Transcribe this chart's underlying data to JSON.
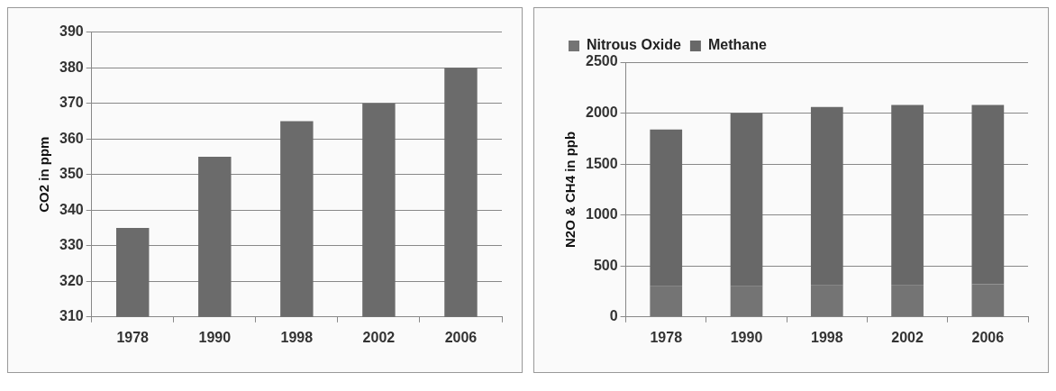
{
  "chart_data": [
    {
      "type": "bar",
      "ylabel": "CO2 in ppm",
      "categories": [
        "1978",
        "1990",
        "1998",
        "2002",
        "2006"
      ],
      "values": [
        335,
        355,
        365,
        370,
        380
      ],
      "color": "#6b6b6b",
      "ylim": [
        310,
        390
      ],
      "yticks": [
        310,
        320,
        330,
        340,
        350,
        360,
        370,
        380,
        390
      ],
      "grid": "y"
    },
    {
      "type": "bar",
      "ylabel": "N2O & CH4 in ppb",
      "categories": [
        "1978",
        "1990",
        "1998",
        "2002",
        "2006"
      ],
      "stacked": true,
      "legend": "top left",
      "series": [
        {
          "name": "Nitrous Oxide",
          "color": "#747474",
          "values": [
            300,
            300,
            310,
            310,
            320
          ]
        },
        {
          "name": "Methane",
          "color": "#686868",
          "values": [
            1540,
            1700,
            1750,
            1770,
            1760
          ]
        }
      ],
      "ylim": [
        0,
        2500
      ],
      "yticks": [
        0,
        500,
        1000,
        1500,
        2000,
        2500
      ],
      "grid": "y"
    }
  ]
}
